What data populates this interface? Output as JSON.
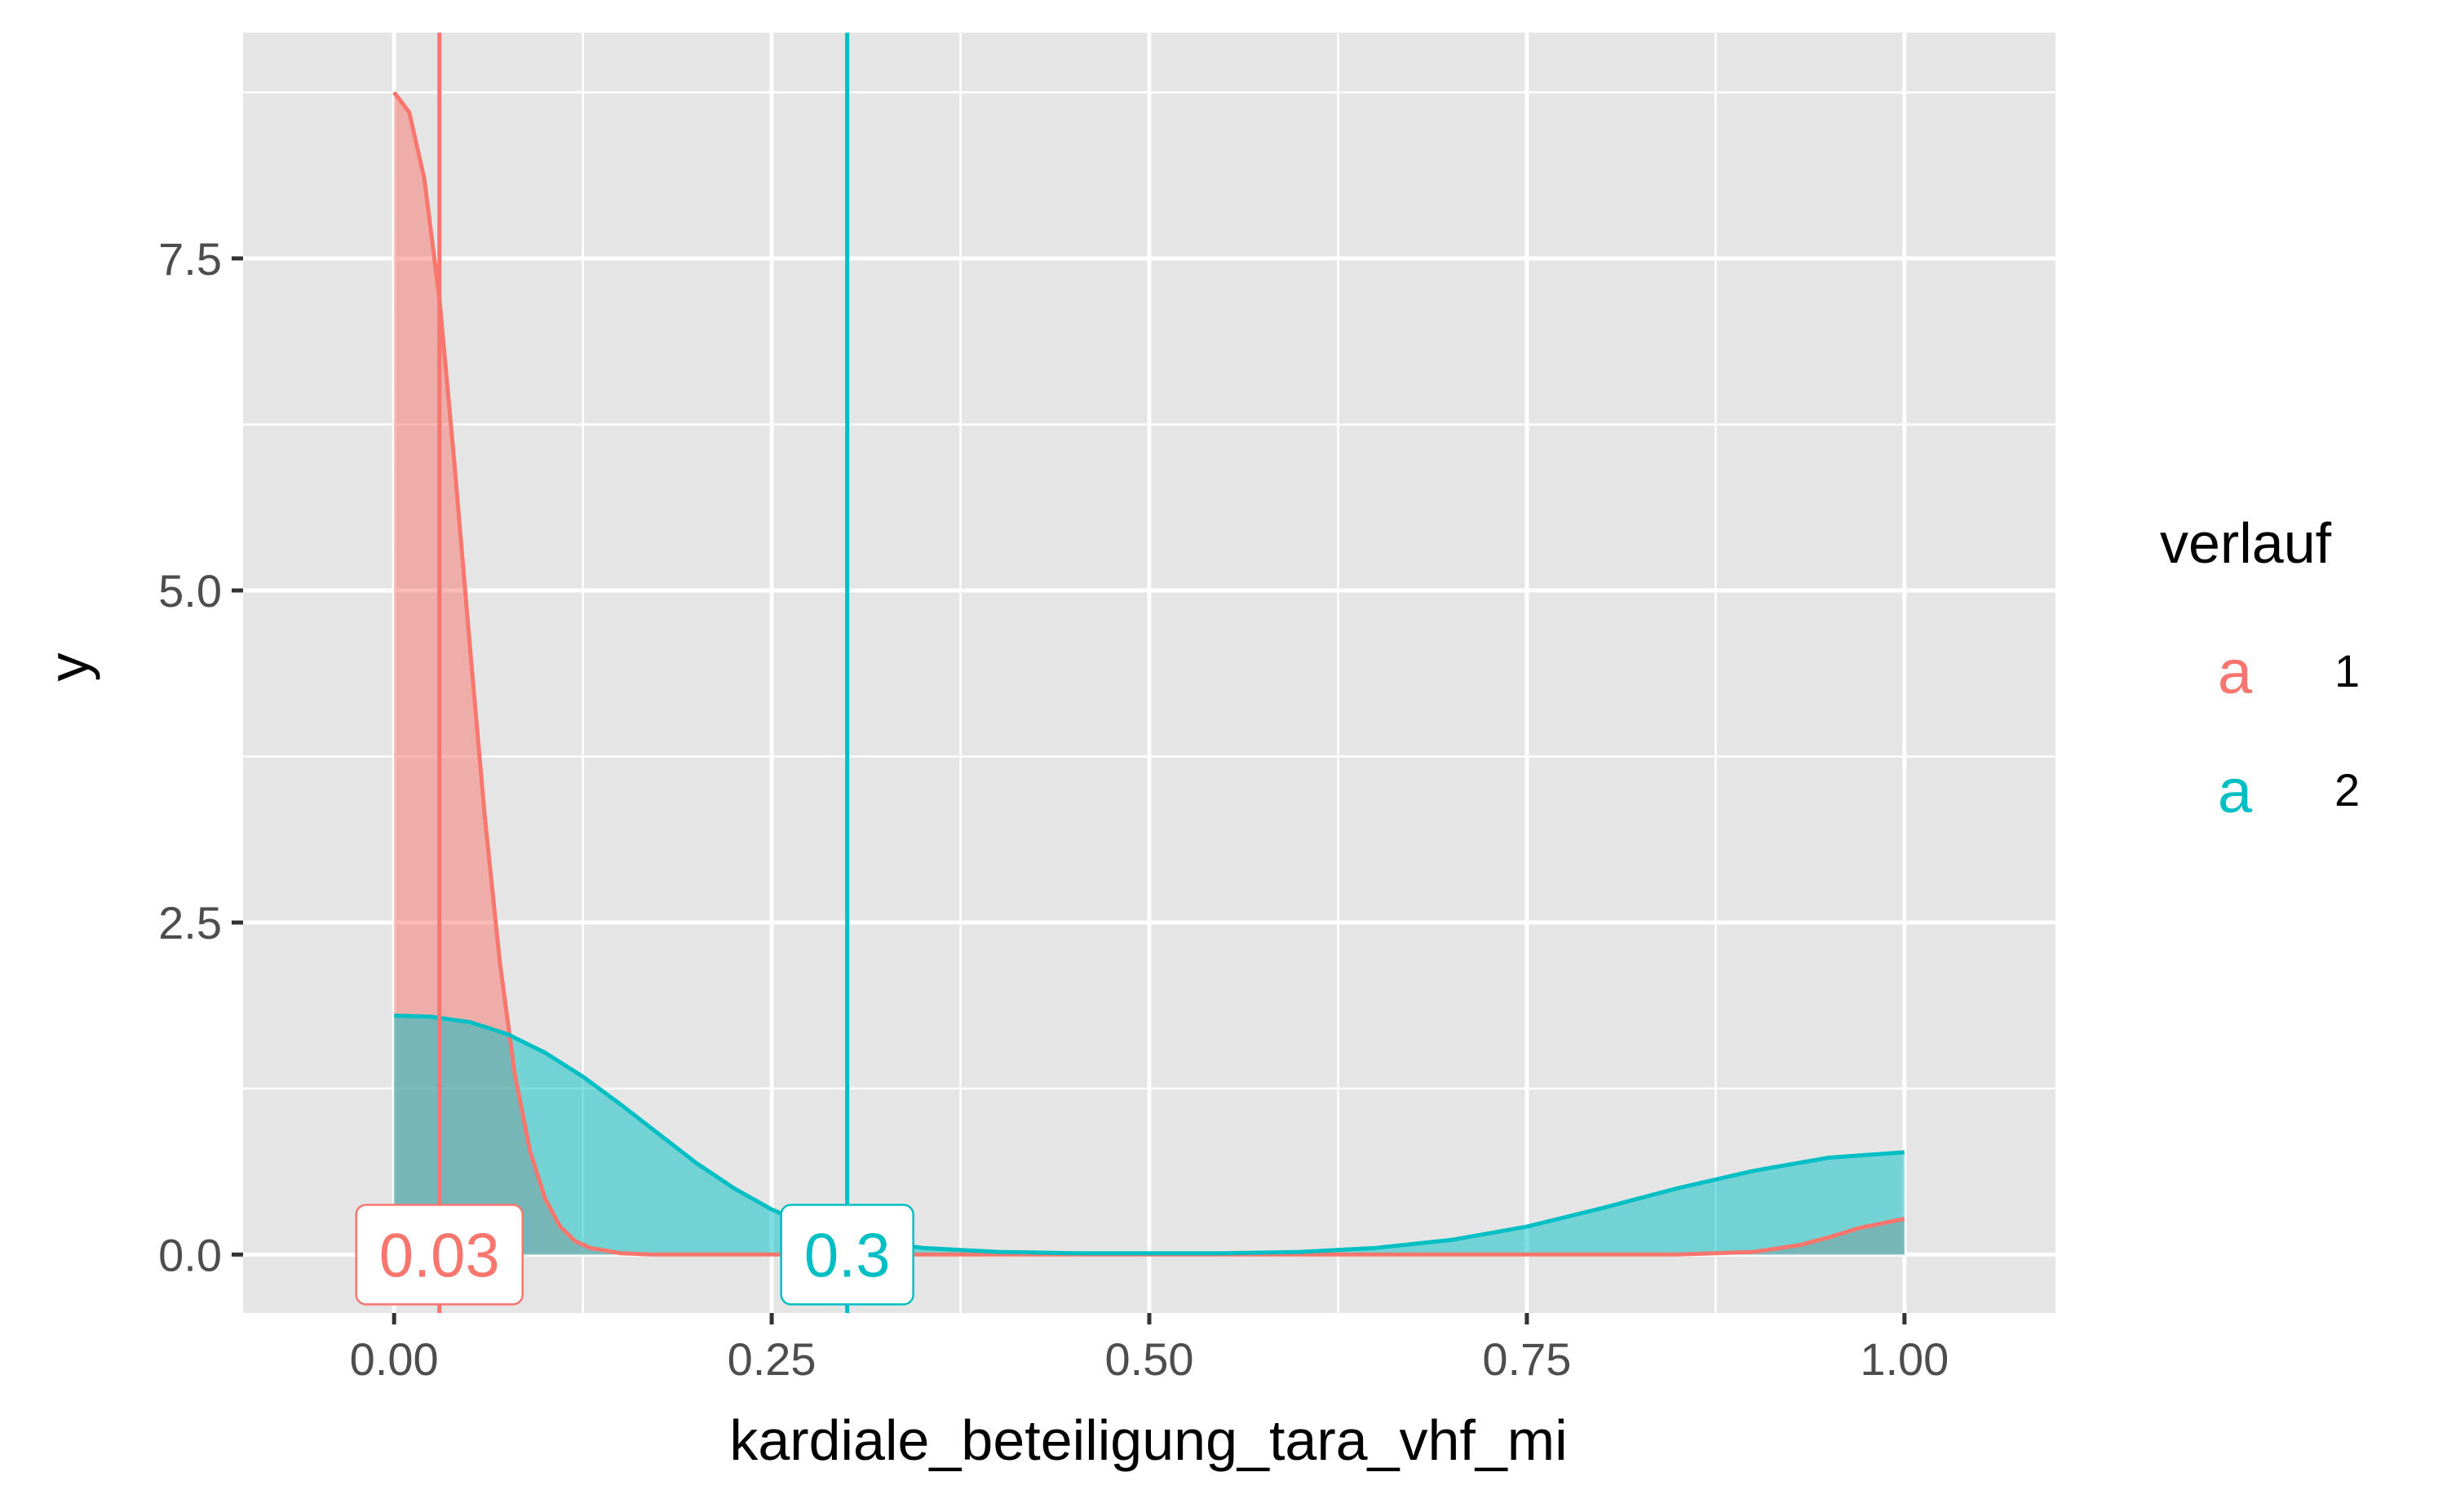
{
  "chart_data": {
    "type": "area",
    "xlabel": "kardiale_beteiligung_tara_vhf_mi",
    "ylabel": "y",
    "xlim": [
      -0.1,
      1.1
    ],
    "ylim": [
      -0.44,
      9.2
    ],
    "x_ticks": [
      "0.00",
      "0.25",
      "0.50",
      "0.75",
      "1.00"
    ],
    "y_ticks": [
      "0.0",
      "2.5",
      "5.0",
      "7.5"
    ],
    "grid": true,
    "legend": {
      "title": "verlauf",
      "position": "right",
      "key_glyph": "a"
    },
    "series": [
      {
        "name": "1",
        "color": "#F8766D",
        "mean": 0.03,
        "mean_label": "0.03",
        "x": [
          0.0,
          0.01,
          0.02,
          0.03,
          0.04,
          0.05,
          0.06,
          0.07,
          0.08,
          0.09,
          0.1,
          0.11,
          0.12,
          0.13,
          0.15,
          0.17,
          0.2,
          0.3,
          0.5,
          0.7,
          0.8,
          0.85,
          0.9,
          0.93,
          0.95,
          0.97,
          1.0
        ],
        "y": [
          8.75,
          8.6,
          8.1,
          7.2,
          5.95,
          4.6,
          3.3,
          2.2,
          1.35,
          0.78,
          0.42,
          0.21,
          0.1,
          0.05,
          0.01,
          0.0,
          0.0,
          0.0,
          0.0,
          0.0,
          0.0,
          0.0,
          0.02,
          0.07,
          0.13,
          0.2,
          0.27
        ]
      },
      {
        "name": "2",
        "color": "#00BFC4",
        "mean": 0.3,
        "mean_label": "0.3",
        "x": [
          0.0,
          0.025,
          0.05,
          0.075,
          0.1,
          0.125,
          0.15,
          0.175,
          0.2,
          0.225,
          0.25,
          0.275,
          0.3,
          0.35,
          0.4,
          0.45,
          0.5,
          0.55,
          0.6,
          0.65,
          0.7,
          0.75,
          0.8,
          0.85,
          0.9,
          0.95,
          1.0
        ],
        "y": [
          1.8,
          1.79,
          1.75,
          1.66,
          1.52,
          1.34,
          1.13,
          0.91,
          0.69,
          0.5,
          0.34,
          0.22,
          0.13,
          0.05,
          0.02,
          0.01,
          0.01,
          0.01,
          0.02,
          0.05,
          0.11,
          0.21,
          0.35,
          0.5,
          0.63,
          0.73,
          0.77
        ]
      }
    ]
  }
}
